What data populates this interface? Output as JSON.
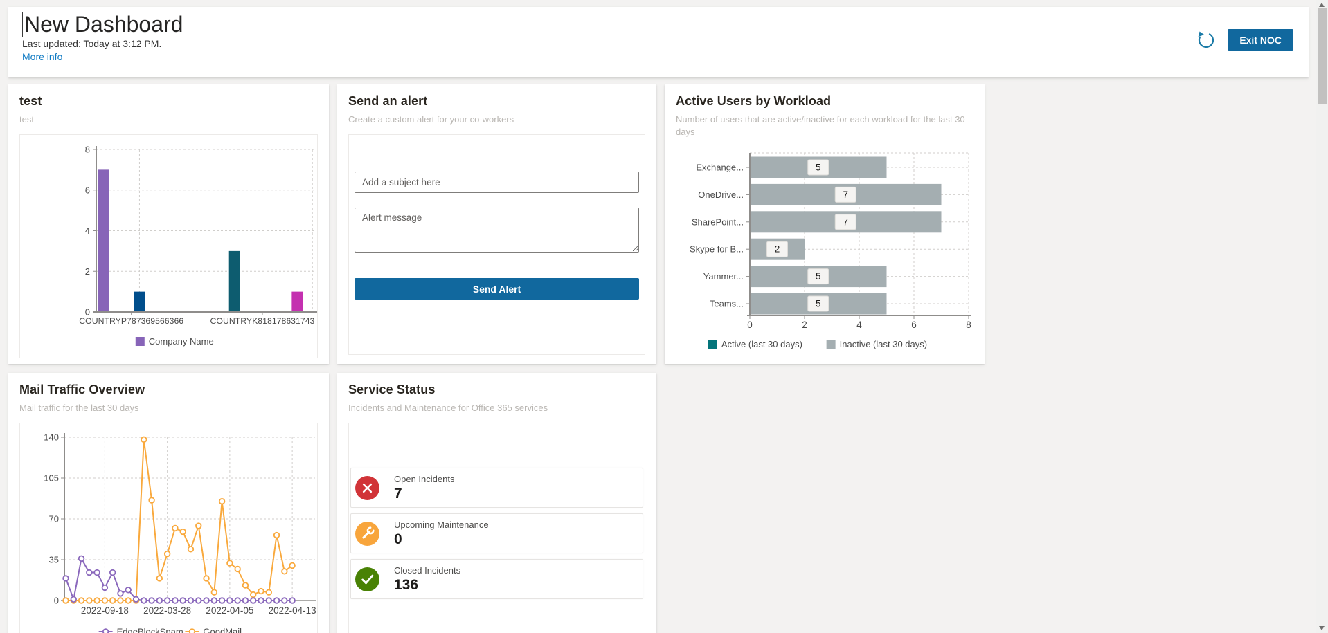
{
  "header": {
    "title": "New Dashboard",
    "last_updated": "Last updated: Today at 3:12 PM.",
    "more_info": "More info",
    "exit_button": "Exit NOC",
    "accent_color": "#11689e"
  },
  "cards": {
    "test": {
      "title": "test",
      "subtitle": "test"
    },
    "send_alert": {
      "title": "Send an alert",
      "subtitle": "Create a custom alert for your co-workers",
      "subject_placeholder": "Add a subject here",
      "subject_value": "",
      "message_placeholder": "Alert message",
      "message_value": "",
      "button": "Send Alert"
    },
    "active_users": {
      "title": "Active Users by Workload",
      "subtitle": "Number of users that are active/inactive for each workload for the last 30 days"
    },
    "mail_traffic": {
      "title": "Mail Traffic Overview",
      "subtitle": "Mail traffic for the last 30 days"
    },
    "service_status": {
      "title": "Service Status",
      "subtitle": "Incidents and Maintenance for Office 365 services",
      "stats": [
        {
          "label": "Open Incidents",
          "value": "7",
          "icon": "error-icon",
          "color": "#d13438"
        },
        {
          "label": "Upcoming Maintenance",
          "value": "0",
          "icon": "maintenance-icon",
          "color": "#f8a53c"
        },
        {
          "label": "Closed Incidents",
          "value": "136",
          "icon": "success-icon",
          "color": "#498205"
        }
      ]
    }
  },
  "chart_data": [
    {
      "id": "test_bar",
      "type": "bar",
      "title": "test",
      "categories": [
        "COUNTRYP787369566366",
        "COUNTRYK818178631743"
      ],
      "category_x": [
        0.16,
        0.757
      ],
      "bars": [
        {
          "category": "COUNTRYP787369566366",
          "value": 7,
          "color": "#8764b8",
          "x": 0.032
        },
        {
          "category": "COUNTRYP787369566366",
          "value": 1,
          "color": "#004e8c",
          "x": 0.197
        },
        {
          "category": "COUNTRYK818178631743",
          "value": 3,
          "color": "#0d5c6f",
          "x": 0.63
        },
        {
          "category": "COUNTRYK818178631743",
          "value": 1,
          "color": "#c430b0",
          "x": 0.916
        }
      ],
      "ylim": [
        0,
        8
      ],
      "yticks": [
        0,
        2,
        4,
        6,
        8
      ],
      "grid_vlines": [
        0.197,
        0.985
      ],
      "grid": true,
      "legend_position": "bottom",
      "legend": [
        {
          "label": "Company Name",
          "color": "#8764b8"
        }
      ]
    },
    {
      "id": "active_users",
      "type": "bar-horizontal",
      "categories": [
        "Exchange...",
        "OneDrive...",
        "SharePoint...",
        "Skype for B...",
        "Yammer...",
        "Teams..."
      ],
      "values": [
        5,
        7,
        7,
        2,
        5,
        5
      ],
      "bar_color": "#a4aeb1",
      "value_label_bg": "#f5f4f2",
      "xlim": [
        0,
        8
      ],
      "xticks": [
        0,
        2,
        4,
        6,
        8
      ],
      "grid": true,
      "legend_position": "bottom",
      "legend": [
        {
          "label": "Active (last 30 days)",
          "color": "#04747a"
        },
        {
          "label": "Inactive (last 30 days)",
          "color": "#a4aeb1"
        }
      ]
    },
    {
      "id": "mail_traffic",
      "type": "line",
      "ylim": [
        0,
        140
      ],
      "yticks": [
        0,
        35,
        70,
        105,
        140
      ],
      "x_tick_labels": [
        "2022-09-18",
        "2022-03-28",
        "2022-04-05",
        "2022-04-13"
      ],
      "x_tick_indices": [
        5,
        13,
        21,
        29
      ],
      "n_points": 30,
      "grid": true,
      "legend_position": "bottom",
      "series": [
        {
          "name": "EdgeBlockSpam",
          "color": "#8a68bc",
          "values": [
            19,
            1,
            36,
            24,
            24,
            11,
            24,
            6,
            9,
            1,
            0,
            0,
            0,
            0,
            0,
            0,
            0,
            0,
            0,
            0,
            0,
            0,
            0,
            0,
            0,
            0,
            0,
            0,
            0,
            0
          ]
        },
        {
          "name": "GoodMail",
          "color": "#f9a93d",
          "values": [
            0,
            0,
            0,
            0,
            0,
            0,
            0,
            0,
            0,
            0,
            138,
            86,
            19,
            40,
            62,
            59,
            44,
            64,
            19,
            7,
            85,
            32,
            27,
            13,
            5,
            8,
            7,
            56,
            25,
            30
          ]
        }
      ]
    }
  ]
}
